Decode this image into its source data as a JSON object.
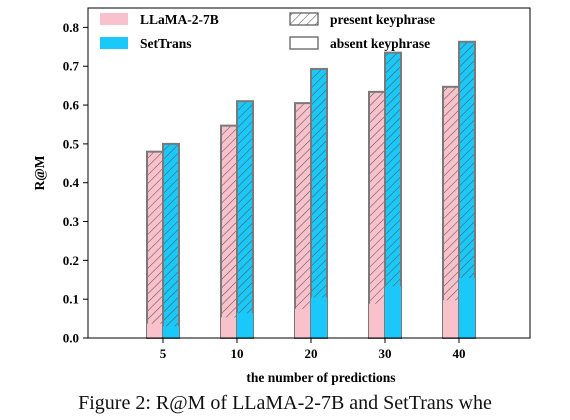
{
  "chart_data": {
    "type": "bar",
    "xlabel": "the number of predictions",
    "ylabel": "R@M",
    "ylim": [
      0,
      0.85
    ],
    "yticks": [
      "0.0",
      "0.1",
      "0.2",
      "0.3",
      "0.4",
      "0.5",
      "0.6",
      "0.7",
      "0.8"
    ],
    "categories": [
      "5",
      "10",
      "20",
      "30",
      "40"
    ],
    "series": [
      {
        "name": "LLaMA-2-7B",
        "color": "#f9c1cc",
        "present": [
          0.48,
          0.547,
          0.605,
          0.634,
          0.647
        ],
        "absent": [
          0.037,
          0.053,
          0.075,
          0.088,
          0.097
        ]
      },
      {
        "name": "SetTrans",
        "color": "#1ac8f9",
        "present": [
          0.5,
          0.61,
          0.693,
          0.735,
          0.763
        ],
        "absent": [
          0.03,
          0.064,
          0.104,
          0.133,
          0.155
        ]
      }
    ],
    "legend": {
      "entries": [
        "LLaMA-2-7B",
        "SetTrans",
        "present keyphrase",
        "absent keyphrase"
      ],
      "placement": "top-left"
    },
    "grid": false
  },
  "caption": "Figure 2: R@M of LLaMA-2-7B and SetTrans whe"
}
